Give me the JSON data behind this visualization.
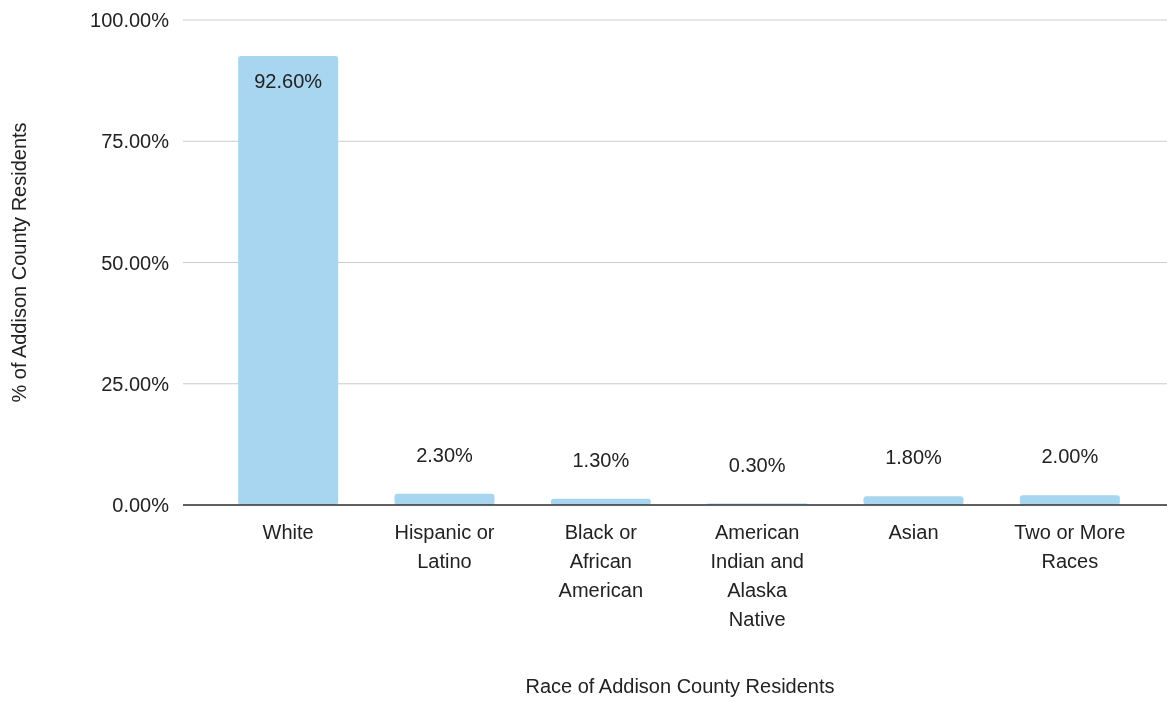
{
  "chart_data": {
    "type": "bar",
    "xlabel": "Race of Addison County Residents",
    "ylabel": "% of Addison County Residents",
    "categories": [
      "White",
      "Hispanic or Latino",
      "Black or African American",
      "American Indian and Alaska Native",
      "Asian",
      "Two or More Races"
    ],
    "values": [
      92.6,
      2.3,
      1.3,
      0.3,
      1.8,
      2.0
    ],
    "value_labels": [
      "92.60%",
      "2.30%",
      "1.30%",
      "0.30%",
      "1.80%",
      "2.00%"
    ],
    "color": "#a8d5ef",
    "ylim": [
      0,
      100
    ],
    "yticks": [
      {
        "value": 0,
        "label": "0.00%"
      },
      {
        "value": 25,
        "label": "25.00%"
      },
      {
        "value": 50,
        "label": "50.00%"
      },
      {
        "value": 75,
        "label": "75.00%"
      },
      {
        "value": 100,
        "label": "100.00%"
      }
    ],
    "grid": "y"
  }
}
